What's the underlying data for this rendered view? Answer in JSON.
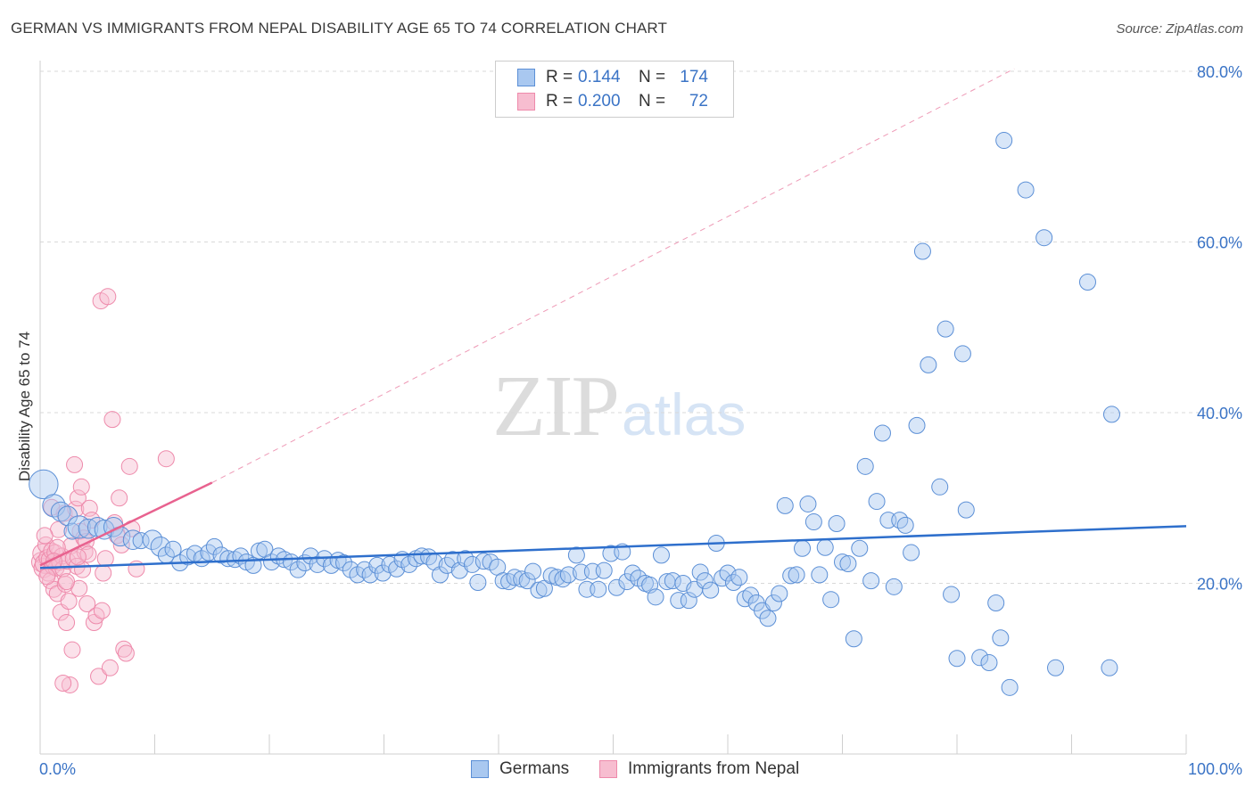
{
  "header": {
    "title": "GERMAN VS IMMIGRANTS FROM NEPAL DISABILITY AGE 65 TO 74 CORRELATION CHART",
    "source": "Source: ZipAtlas.com"
  },
  "watermark": {
    "zip": "ZIP",
    "atlas": "atlas"
  },
  "legend": {
    "rows": [
      {
        "r_label": "R =",
        "r_value": "0.144",
        "n_label": "N =",
        "n_value": "174"
      },
      {
        "r_label": "R =",
        "r_value": "0.200",
        "n_label": "N =",
        "n_value": "72"
      }
    ]
  },
  "bottom_legend": {
    "germans": "Germans",
    "nepal": "Immigrants from Nepal"
  },
  "colors": {
    "german_fill": "#a9c8f0",
    "german_stroke": "#5b8fd6",
    "german_line": "#2e6fcc",
    "nepal_fill": "#f7bdd0",
    "nepal_stroke": "#ee8aab",
    "nepal_line": "#e8628f",
    "grid": "#d9d9d9",
    "tick_text": "#3b74c6"
  },
  "chart_data": {
    "type": "scatter",
    "title": "GERMAN VS IMMIGRANTS FROM NEPAL DISABILITY AGE 65 TO 74 CORRELATION CHART",
    "xlabel": "",
    "ylabel": "Disability Age 65 to 74",
    "xlim": [
      0,
      100
    ],
    "ylim": [
      0,
      82
    ],
    "x_tick_labels": [
      "0.0%",
      "100.0%"
    ],
    "y_ticks": [
      20,
      40,
      60,
      80
    ],
    "y_tick_labels": [
      "20.0%",
      "40.0%",
      "60.0%",
      "80.0%"
    ],
    "grid": "horizontal dashed",
    "legend_position": "bottom",
    "series": [
      {
        "name": "Germans",
        "r": 0.144,
        "n": 174,
        "trend": {
          "x": [
            0,
            100
          ],
          "y": [
            21.8,
            26.7
          ]
        },
        "points": [
          [
            0.3,
            31.6,
            18
          ],
          [
            1.2,
            29.1,
            14
          ],
          [
            1.8,
            28.4,
            12
          ],
          [
            2.4,
            27.9,
            12
          ],
          [
            2.8,
            26.1,
            10
          ],
          [
            3.4,
            26.6,
            14
          ],
          [
            4.2,
            26.4,
            12
          ],
          [
            5.0,
            26.6,
            12
          ],
          [
            5.6,
            26.3,
            12
          ],
          [
            6.4,
            26.6,
            12
          ],
          [
            7.0,
            25.5,
            12
          ],
          [
            8.1,
            25.1,
            12
          ],
          [
            8.8,
            25.0,
            10
          ],
          [
            9.8,
            25.1,
            12
          ],
          [
            10.5,
            24.3,
            12
          ],
          [
            11.0,
            23.3,
            10
          ],
          [
            11.6,
            24.0,
            10
          ],
          [
            12.2,
            22.4,
            10
          ],
          [
            12.9,
            23.1,
            10
          ],
          [
            13.5,
            23.5,
            10
          ],
          [
            14.1,
            22.9,
            10
          ],
          [
            14.7,
            23.6,
            10
          ],
          [
            15.2,
            24.3,
            10
          ],
          [
            15.8,
            23.3,
            10
          ],
          [
            16.4,
            22.9,
            10
          ],
          [
            17.0,
            22.8,
            10
          ],
          [
            17.5,
            23.2,
            10
          ],
          [
            18.0,
            22.5,
            10
          ],
          [
            18.6,
            22.1,
            10
          ],
          [
            19.1,
            23.8,
            10
          ],
          [
            19.6,
            24.0,
            10
          ],
          [
            20.2,
            22.5,
            10
          ],
          [
            20.8,
            23.2,
            10
          ],
          [
            21.3,
            22.8,
            10
          ],
          [
            21.9,
            22.5,
            10
          ],
          [
            22.5,
            21.6,
            10
          ],
          [
            23.1,
            22.4,
            10
          ],
          [
            23.6,
            23.2,
            10
          ],
          [
            24.2,
            22.2,
            10
          ],
          [
            24.8,
            22.9,
            10
          ],
          [
            25.4,
            22.1,
            10
          ],
          [
            26.0,
            22.7,
            10
          ],
          [
            26.5,
            22.4,
            10
          ],
          [
            27.1,
            21.6,
            10
          ],
          [
            27.7,
            21.0,
            10
          ],
          [
            28.3,
            21.6,
            10
          ],
          [
            28.8,
            21.0,
            10
          ],
          [
            29.4,
            22.1,
            10
          ],
          [
            29.9,
            21.2,
            10
          ],
          [
            30.5,
            22.2,
            10
          ],
          [
            31.1,
            21.7,
            10
          ],
          [
            31.6,
            22.8,
            10
          ],
          [
            32.2,
            22.2,
            10
          ],
          [
            32.8,
            22.9,
            10
          ],
          [
            33.3,
            23.2,
            10
          ],
          [
            33.9,
            23.1,
            10
          ],
          [
            34.4,
            22.5,
            10
          ],
          [
            34.9,
            21.0,
            10
          ],
          [
            35.5,
            22.1,
            10
          ],
          [
            36.0,
            22.8,
            10
          ],
          [
            36.6,
            21.5,
            10
          ],
          [
            37.1,
            22.9,
            10
          ],
          [
            37.7,
            22.2,
            10
          ],
          [
            38.2,
            20.1,
            10
          ],
          [
            38.7,
            22.6,
            10
          ],
          [
            39.3,
            22.5,
            10
          ],
          [
            39.9,
            21.9,
            10
          ],
          [
            40.4,
            20.3,
            10
          ],
          [
            40.9,
            20.2,
            10
          ],
          [
            41.4,
            20.7,
            10
          ],
          [
            42.0,
            20.5,
            10
          ],
          [
            42.5,
            20.3,
            10
          ],
          [
            43.0,
            21.4,
            10
          ],
          [
            43.5,
            19.2,
            10
          ],
          [
            44.0,
            19.4,
            10
          ],
          [
            44.6,
            20.9,
            10
          ],
          [
            45.1,
            20.7,
            10
          ],
          [
            45.6,
            20.5,
            10
          ],
          [
            46.1,
            21.0,
            10
          ],
          [
            46.8,
            23.3,
            10
          ],
          [
            47.2,
            21.3,
            10
          ],
          [
            47.7,
            19.3,
            10
          ],
          [
            48.2,
            21.4,
            10
          ],
          [
            48.7,
            19.3,
            10
          ],
          [
            49.2,
            21.5,
            10
          ],
          [
            49.8,
            23.5,
            10
          ],
          [
            50.3,
            19.5,
            10
          ],
          [
            50.8,
            23.7,
            10
          ],
          [
            51.2,
            20.2,
            10
          ],
          [
            51.7,
            21.2,
            10
          ],
          [
            52.2,
            20.6,
            10
          ],
          [
            52.8,
            20.0,
            10
          ],
          [
            53.2,
            19.8,
            10
          ],
          [
            53.7,
            18.4,
            10
          ],
          [
            54.2,
            23.3,
            10
          ],
          [
            54.7,
            20.2,
            10
          ],
          [
            55.2,
            20.3,
            10
          ],
          [
            55.7,
            18.0,
            10
          ],
          [
            56.1,
            20.0,
            10
          ],
          [
            56.6,
            18.0,
            10
          ],
          [
            57.1,
            19.3,
            10
          ],
          [
            57.6,
            21.3,
            10
          ],
          [
            58.0,
            20.3,
            10
          ],
          [
            58.5,
            19.2,
            10
          ],
          [
            59.0,
            24.7,
            10
          ],
          [
            59.5,
            20.6,
            10
          ],
          [
            60.0,
            21.2,
            10
          ],
          [
            60.5,
            20.1,
            10
          ],
          [
            61.0,
            20.7,
            10
          ],
          [
            61.5,
            18.2,
            10
          ],
          [
            62.0,
            18.6,
            10
          ],
          [
            62.5,
            17.7,
            10
          ],
          [
            63.0,
            16.8,
            10
          ],
          [
            63.5,
            15.9,
            10
          ],
          [
            64.0,
            17.7,
            10
          ],
          [
            64.5,
            18.8,
            10
          ],
          [
            65.0,
            29.1,
            10
          ],
          [
            65.5,
            20.9,
            10
          ],
          [
            66.0,
            21.0,
            10
          ],
          [
            66.5,
            24.1,
            10
          ],
          [
            67.0,
            29.3,
            10
          ],
          [
            67.5,
            27.2,
            10
          ],
          [
            68.0,
            21.0,
            10
          ],
          [
            68.5,
            24.2,
            10
          ],
          [
            69.0,
            18.1,
            10
          ],
          [
            69.5,
            27.0,
            10
          ],
          [
            70.0,
            22.5,
            10
          ],
          [
            70.5,
            22.3,
            10
          ],
          [
            71.0,
            13.5,
            10
          ],
          [
            71.5,
            24.1,
            10
          ],
          [
            72.0,
            33.7,
            10
          ],
          [
            72.5,
            20.3,
            10
          ],
          [
            73.0,
            29.6,
            10
          ],
          [
            73.5,
            37.6,
            10
          ],
          [
            74.0,
            27.4,
            10
          ],
          [
            74.5,
            19.6,
            10
          ],
          [
            75.0,
            27.4,
            10
          ],
          [
            75.5,
            26.8,
            10
          ],
          [
            76.0,
            23.6,
            10
          ],
          [
            76.5,
            38.5,
            10
          ],
          [
            77.0,
            58.9,
            10
          ],
          [
            77.5,
            45.6,
            10
          ],
          [
            78.5,
            31.3,
            10
          ],
          [
            79.0,
            49.8,
            10
          ],
          [
            79.5,
            18.7,
            10
          ],
          [
            80.0,
            11.2,
            10
          ],
          [
            80.5,
            46.9,
            10
          ],
          [
            80.8,
            28.6,
            10
          ],
          [
            82.0,
            11.3,
            10
          ],
          [
            82.8,
            10.7,
            10
          ],
          [
            83.4,
            17.7,
            10
          ],
          [
            83.8,
            13.6,
            10
          ],
          [
            84.1,
            71.9,
            10
          ],
          [
            84.6,
            7.8,
            10
          ],
          [
            86.0,
            66.1,
            10
          ],
          [
            87.6,
            60.5,
            10
          ],
          [
            88.6,
            10.1,
            10
          ],
          [
            91.4,
            55.3,
            10
          ],
          [
            93.3,
            10.1,
            10
          ],
          [
            93.5,
            39.8,
            10
          ]
        ]
      },
      {
        "name": "Immigrants from Nepal",
        "r": 0.2,
        "n": 72,
        "trend": {
          "x": [
            0,
            15
          ],
          "y": [
            22.1,
            31.8
          ]
        },
        "trend_dashed": {
          "x": [
            15,
            85
          ],
          "y": [
            31.8,
            80.3
          ]
        },
        "points": [
          [
            0.1,
            22.5,
            12
          ],
          [
            0.2,
            23.5,
            12
          ],
          [
            0.3,
            21.8,
            12
          ],
          [
            0.4,
            22.3,
            12
          ],
          [
            0.5,
            24.5,
            10
          ],
          [
            0.6,
            23.0,
            10
          ],
          [
            0.7,
            21.2,
            10
          ],
          [
            0.8,
            22.8,
            10
          ],
          [
            0.9,
            20.3,
            10
          ],
          [
            1.0,
            23.8,
            10
          ],
          [
            1.1,
            22.0,
            10
          ],
          [
            1.2,
            19.3,
            10
          ],
          [
            1.3,
            23.6,
            10
          ],
          [
            1.4,
            21.8,
            10
          ],
          [
            1.5,
            18.8,
            10
          ],
          [
            1.6,
            26.3,
            10
          ],
          [
            1.7,
            22.5,
            10
          ],
          [
            1.8,
            16.6,
            10
          ],
          [
            1.9,
            23.2,
            10
          ],
          [
            2.0,
            21.7,
            10
          ],
          [
            2.1,
            28.2,
            10
          ],
          [
            2.2,
            19.9,
            10
          ],
          [
            2.3,
            15.4,
            10
          ],
          [
            2.4,
            22.6,
            10
          ],
          [
            2.5,
            17.9,
            10
          ],
          [
            2.6,
            8.1,
            10
          ],
          [
            2.7,
            24.4,
            10
          ],
          [
            2.8,
            12.2,
            10
          ],
          [
            2.9,
            22.9,
            10
          ],
          [
            3.0,
            33.9,
            10
          ],
          [
            3.1,
            28.7,
            10
          ],
          [
            3.2,
            22.0,
            10
          ],
          [
            3.3,
            30.0,
            10
          ],
          [
            3.4,
            19.4,
            10
          ],
          [
            3.5,
            26.1,
            10
          ],
          [
            3.6,
            31.3,
            10
          ],
          [
            3.7,
            21.6,
            10
          ],
          [
            3.8,
            25.3,
            10
          ],
          [
            3.9,
            23.7,
            10
          ],
          [
            4.0,
            24.9,
            10
          ],
          [
            4.1,
            17.6,
            10
          ],
          [
            4.2,
            23.4,
            10
          ],
          [
            4.3,
            28.8,
            10
          ],
          [
            4.5,
            27.4,
            10
          ],
          [
            4.7,
            15.4,
            10
          ],
          [
            4.9,
            16.2,
            10
          ],
          [
            5.1,
            9.1,
            10
          ],
          [
            5.3,
            53.1,
            10
          ],
          [
            5.4,
            16.8,
            10
          ],
          [
            5.5,
            21.2,
            10
          ],
          [
            5.7,
            22.9,
            10
          ],
          [
            5.9,
            53.6,
            10
          ],
          [
            6.1,
            10.1,
            10
          ],
          [
            6.3,
            39.2,
            10
          ],
          [
            6.5,
            27.1,
            10
          ],
          [
            6.7,
            25.6,
            10
          ],
          [
            6.9,
            30.0,
            10
          ],
          [
            7.1,
            24.5,
            10
          ],
          [
            7.3,
            12.3,
            10
          ],
          [
            7.5,
            11.8,
            10
          ],
          [
            7.8,
            33.7,
            10
          ],
          [
            8.0,
            26.4,
            10
          ],
          [
            8.4,
            21.7,
            10
          ],
          [
            11.0,
            34.6,
            10
          ],
          [
            1.0,
            28.9,
            10
          ],
          [
            2.0,
            8.3,
            10
          ],
          [
            0.6,
            20.8,
            10
          ],
          [
            1.5,
            24.2,
            10
          ],
          [
            2.3,
            20.2,
            10
          ],
          [
            3.3,
            23.1,
            10
          ],
          [
            0.4,
            25.6,
            10
          ],
          [
            1.2,
            22.6,
            10
          ]
        ]
      }
    ]
  }
}
